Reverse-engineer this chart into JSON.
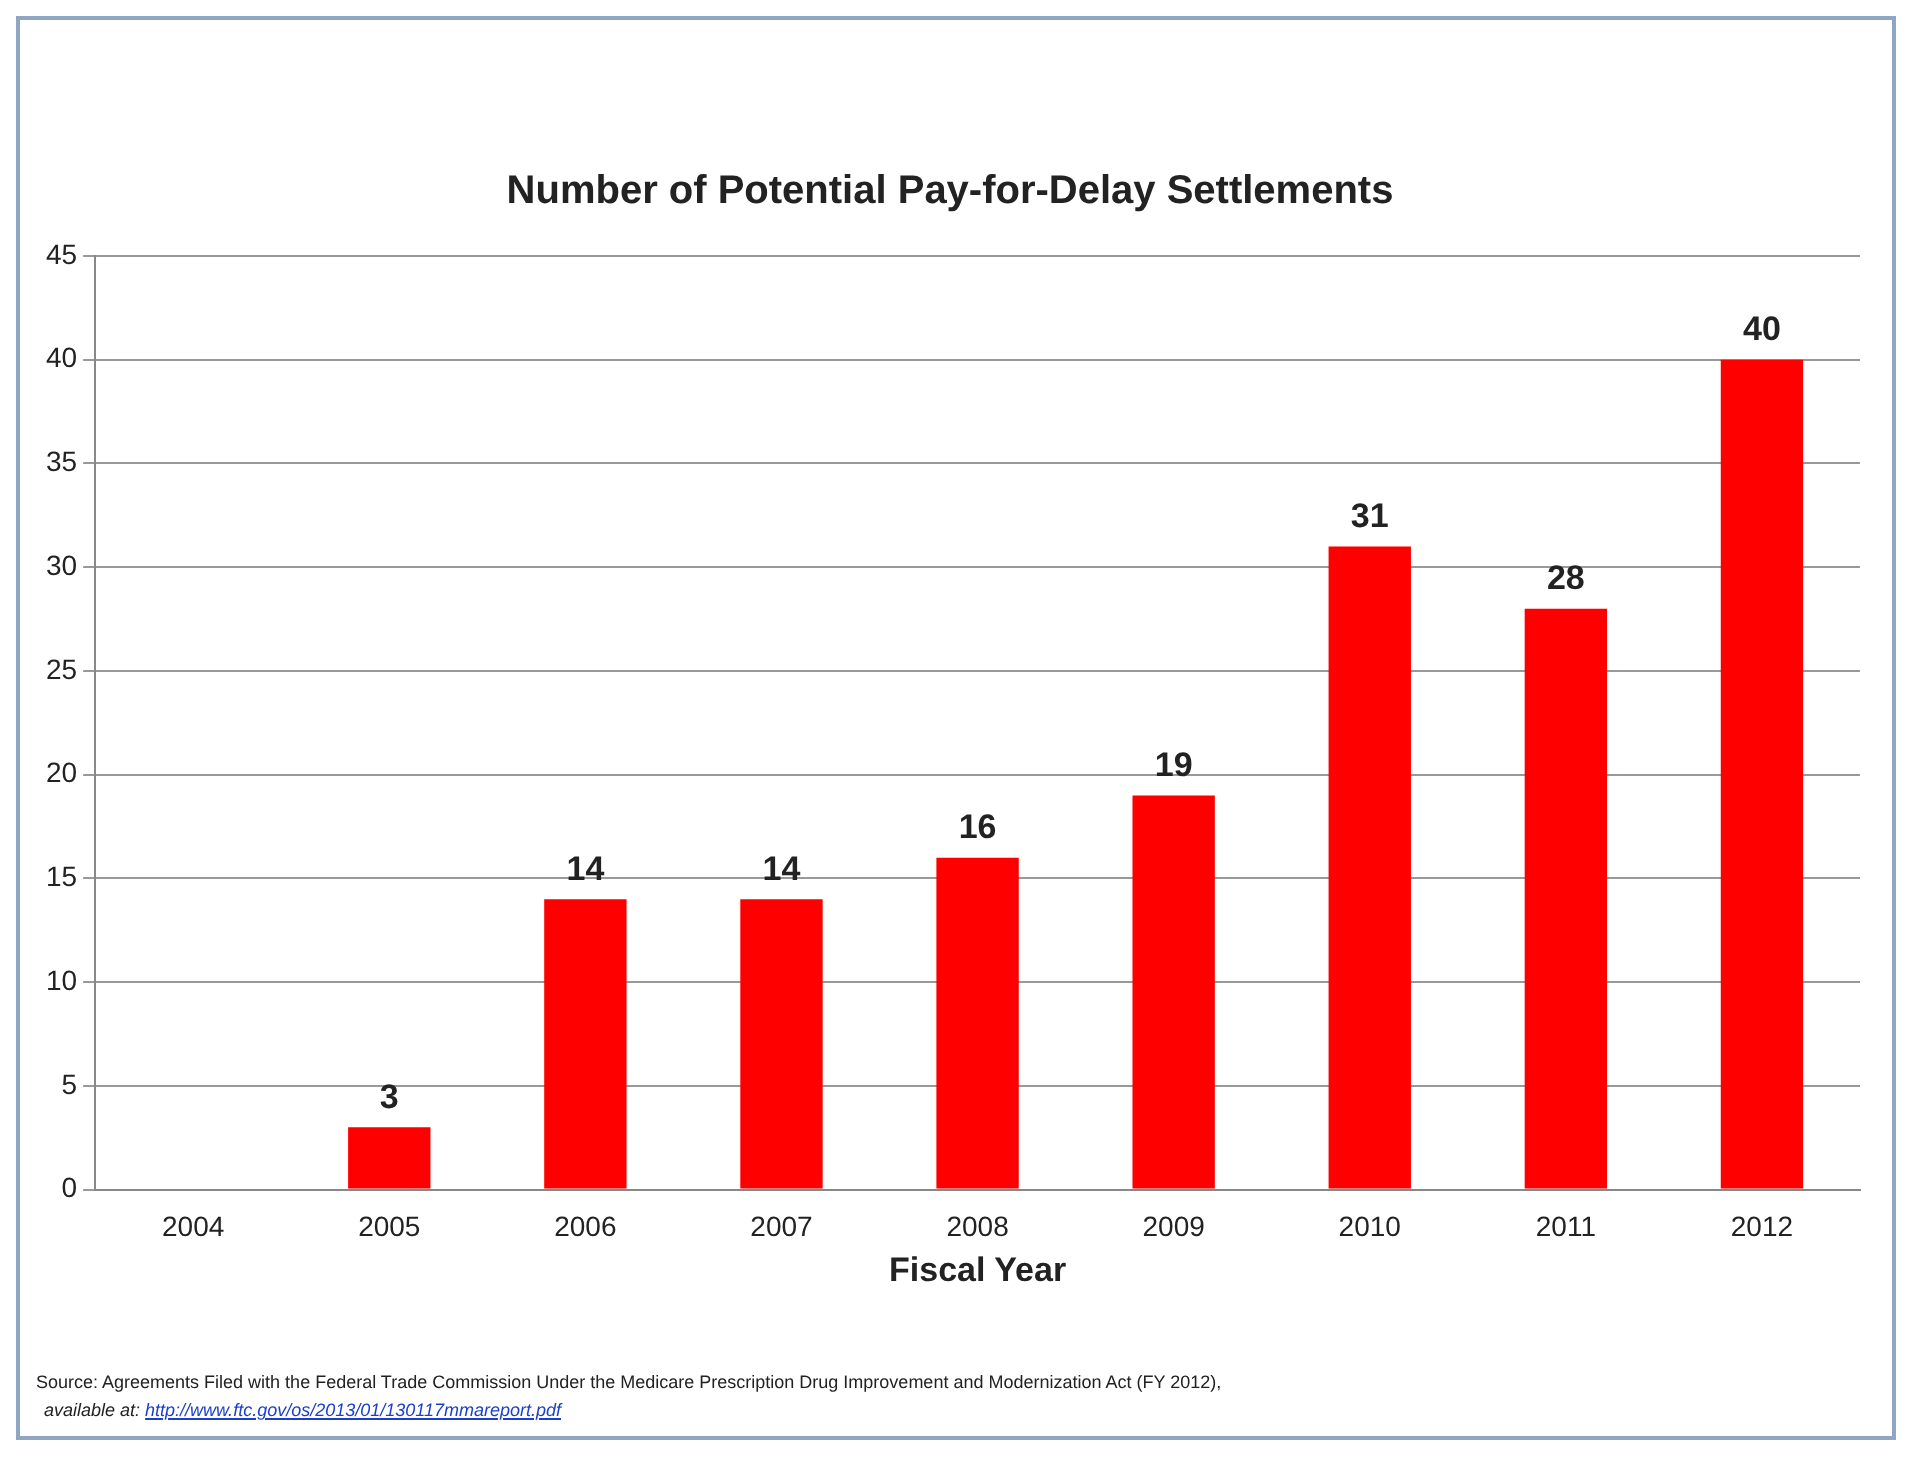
{
  "chart_data": {
    "type": "bar",
    "title": "Number of Potential Pay-for-Delay Settlements",
    "xlabel": "Fiscal Year",
    "categories": [
      "2004",
      "2005",
      "2006",
      "2007",
      "2008",
      "2009",
      "2010",
      "2011",
      "2012"
    ],
    "values": [
      0,
      3,
      14,
      14,
      16,
      19,
      31,
      28,
      40
    ],
    "value_labels": [
      null,
      "3",
      "14",
      "14",
      "16",
      "19",
      "31",
      "28",
      "40"
    ],
    "color": "#ff0000",
    "ylim": [
      0,
      45
    ],
    "yticks": [
      0,
      5,
      10,
      15,
      20,
      25,
      30,
      35,
      40,
      45
    ],
    "grid": "y",
    "legend": false,
    "annotations": [
      "Source: Agreements Filed with the Federal Trade Commission Under the Medicare Prescription Drug Improvement and Modernization Act (FY 2012),",
      "available at: http://www.ftc.gov/os/2013/01/130117mmareport.pdf"
    ]
  }
}
